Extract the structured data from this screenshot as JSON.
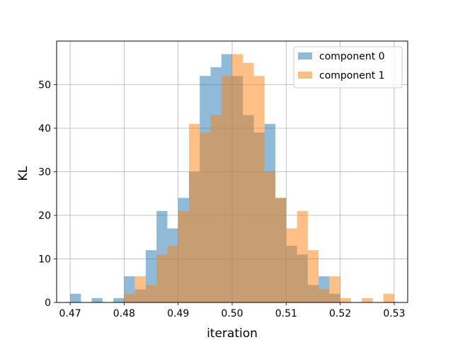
{
  "chart_data": {
    "type": "bar",
    "subtype": "histogram-overlay",
    "title": "",
    "xlabel": "iteration",
    "ylabel": "KL",
    "xlim": [
      0.4675,
      0.5325
    ],
    "ylim": [
      0,
      60
    ],
    "xticks": [
      "0.47",
      "0.48",
      "0.49",
      "0.50",
      "0.51",
      "0.52",
      "0.53"
    ],
    "yticks": [
      "0",
      "10",
      "20",
      "30",
      "40",
      "50"
    ],
    "grid": true,
    "legend_position": "top-right",
    "bin_width": 0.002,
    "bin_edges_start": 0.47,
    "series": [
      {
        "name": "component 0",
        "color": "#1f77b4",
        "alpha": 0.5,
        "bin_starts": [
          0.47,
          0.472,
          0.474,
          0.476,
          0.478,
          0.48,
          0.482,
          0.484,
          0.486,
          0.488,
          0.49,
          0.492,
          0.494,
          0.496,
          0.498,
          0.5,
          0.502,
          0.504,
          0.506,
          0.508,
          0.51,
          0.512,
          0.514,
          0.516,
          0.518
        ],
        "values": [
          2,
          0,
          1,
          0,
          1,
          6,
          3,
          12,
          21,
          17,
          24,
          30,
          52,
          54,
          57,
          52,
          43,
          39,
          41,
          24,
          13,
          11,
          4,
          6,
          2
        ]
      },
      {
        "name": "component 1",
        "color": "#ff7f0e",
        "alpha": 0.5,
        "bin_starts": [
          0.48,
          0.482,
          0.484,
          0.486,
          0.488,
          0.49,
          0.492,
          0.494,
          0.496,
          0.498,
          0.5,
          0.502,
          0.504,
          0.506,
          0.508,
          0.51,
          0.512,
          0.514,
          0.516,
          0.518,
          0.52,
          0.522,
          0.524,
          0.526,
          0.528
        ],
        "values": [
          2,
          6,
          4,
          11,
          13,
          21,
          41,
          39,
          43,
          52,
          57,
          55,
          52,
          30,
          24,
          17,
          21,
          12,
          3,
          6,
          1,
          0,
          1,
          0,
          2
        ]
      }
    ]
  }
}
